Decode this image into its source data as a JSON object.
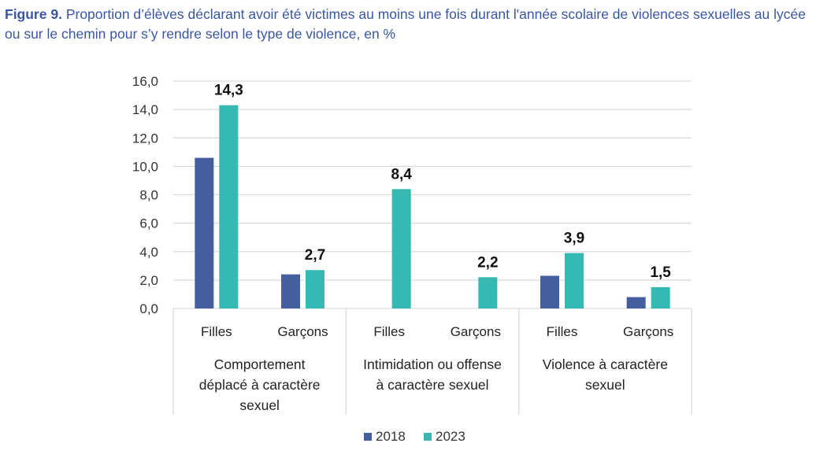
{
  "caption": {
    "label": "Figure 9.",
    "text": "Proportion d’élèves déclarant avoir été victimes au moins une fois durant l'année scolaire de violences sexuelles au lycée ou sur le chemin pour s’y rendre selon le type de violence, en %"
  },
  "colors": {
    "series_2018": "#445e9e",
    "series_2023": "#35b9b2",
    "grid": "#d9d9d9",
    "caption": "#3a56a0"
  },
  "chart_data": {
    "type": "bar",
    "title": "",
    "xlabel": "",
    "ylabel": "",
    "ylim": [
      0,
      16
    ],
    "yticks": [
      "0,0",
      "2,0",
      "4,0",
      "6,0",
      "8,0",
      "10,0",
      "12,0",
      "14,0",
      "16,0"
    ],
    "grid": true,
    "legend_position": "bottom",
    "groups": [
      {
        "lines": [
          "Comportement",
          "déplacé à caractère",
          "sexuel"
        ],
        "categories": [
          "Filles",
          "Garçons"
        ]
      },
      {
        "lines": [
          "Intimidation ou offense",
          "à caractère sexuel"
        ],
        "categories": [
          "Filles",
          "Garçons"
        ]
      },
      {
        "lines": [
          "Violence à caractère",
          "sexuel"
        ],
        "categories": [
          "Filles",
          "Garçons"
        ]
      }
    ],
    "categories": [
      "Filles",
      "Garçons",
      "Filles",
      "Garçons",
      "Filles",
      "Garçons"
    ],
    "series": [
      {
        "name": "2018",
        "values": [
          10.6,
          2.4,
          null,
          null,
          2.3,
          0.8
        ],
        "data_labels": []
      },
      {
        "name": "2023",
        "values": [
          14.3,
          2.7,
          8.4,
          2.2,
          3.9,
          1.5
        ],
        "data_labels": [
          "14,3",
          "2,7",
          "8,4",
          "2,2",
          "3,9",
          "1,5"
        ]
      }
    ]
  }
}
